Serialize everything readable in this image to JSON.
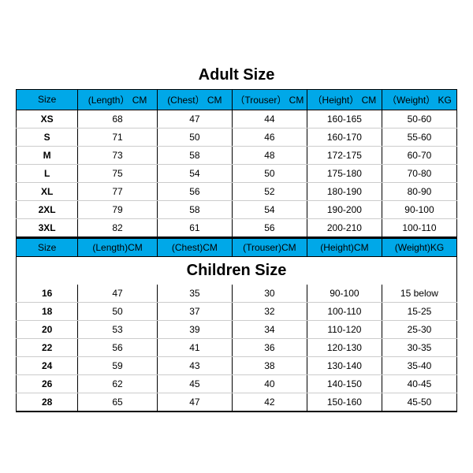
{
  "colors": {
    "header_bg": "#00a8e8",
    "border": "#000000",
    "row_border": "#cccccc",
    "text": "#000000",
    "background": "#ffffff"
  },
  "typography": {
    "title_fontsize": 20,
    "cell_fontsize": 12,
    "font_family": "Arial"
  },
  "adult": {
    "title": "Adult Size",
    "columns": [
      "Size",
      "(Length） CM",
      "(Chest） CM",
      "（Trouser） CM",
      "（Height） CM",
      "（Weight） KG"
    ],
    "rows": [
      [
        "XS",
        "68",
        "47",
        "44",
        "160-165",
        "50-60"
      ],
      [
        "S",
        "71",
        "50",
        "46",
        "160-170",
        "55-60"
      ],
      [
        "M",
        "73",
        "58",
        "48",
        "172-175",
        "60-70"
      ],
      [
        "L",
        "75",
        "54",
        "50",
        "175-180",
        "70-80"
      ],
      [
        "XL",
        "77",
        "56",
        "52",
        "180-190",
        "80-90"
      ],
      [
        "2XL",
        "79",
        "58",
        "54",
        "190-200",
        "90-100"
      ],
      [
        "3XL",
        "82",
        "61",
        "56",
        "200-210",
        "100-110"
      ]
    ]
  },
  "children": {
    "title": "Children Size",
    "columns": [
      "Size",
      "(Length)CM",
      "(Chest)CM",
      "(Trouser)CM",
      "(Height)CM",
      "(Weight)KG"
    ],
    "rows": [
      [
        "16",
        "47",
        "35",
        "30",
        "90-100",
        "15 below"
      ],
      [
        "18",
        "50",
        "37",
        "32",
        "100-110",
        "15-25"
      ],
      [
        "20",
        "53",
        "39",
        "34",
        "110-120",
        "25-30"
      ],
      [
        "22",
        "56",
        "41",
        "36",
        "120-130",
        "30-35"
      ],
      [
        "24",
        "59",
        "43",
        "38",
        "130-140",
        "35-40"
      ],
      [
        "26",
        "62",
        "45",
        "40",
        "140-150",
        "40-45"
      ],
      [
        "28",
        "65",
        "47",
        "42",
        "150-160",
        "45-50"
      ]
    ]
  }
}
